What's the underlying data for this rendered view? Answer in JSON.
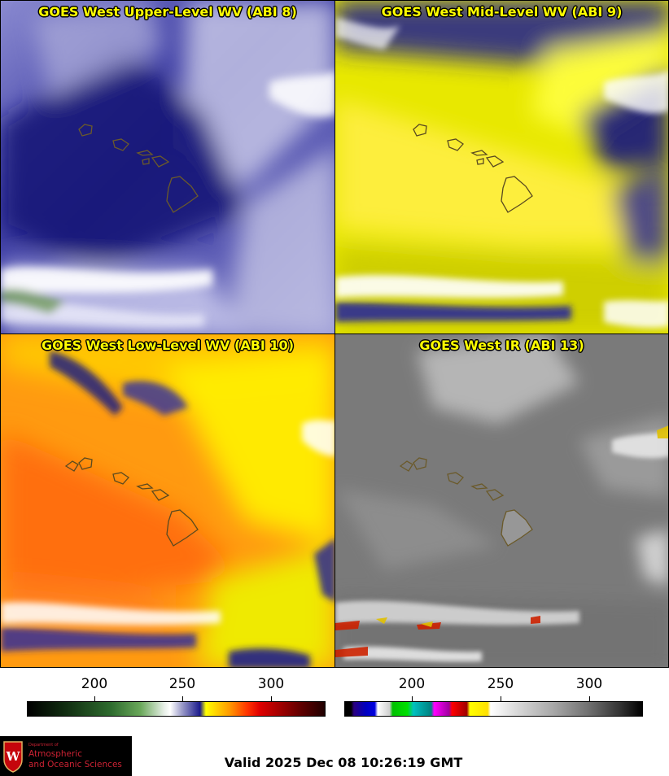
{
  "panels": [
    {
      "id": "upper",
      "title": "GOES West Upper-Level WV (ABI 8)"
    },
    {
      "id": "mid",
      "title": "GOES West Mid-Level WV (ABI 9)"
    },
    {
      "id": "low",
      "title": "GOES West Low-Level WV (ABI 10)"
    },
    {
      "id": "ir",
      "title": "GOES West IR (ABI 13)"
    }
  ],
  "colorbar_left": {
    "ticks": [
      "200",
      "250",
      "300"
    ]
  },
  "colorbar_right": {
    "ticks": [
      "200",
      "250",
      "300"
    ]
  },
  "logo": {
    "line1": "Department of",
    "line2": "Atmospheric",
    "line3": "and Oceanic Sciences",
    "crest_letter": "W"
  },
  "valid_text": "Valid 2025 Dec 08 10:26:19 GMT",
  "colors": {
    "title": "#ffff00",
    "coast_upper": "#6b5a2a",
    "coast_other": "#5a4a20",
    "logo_text": "#cc2233"
  }
}
